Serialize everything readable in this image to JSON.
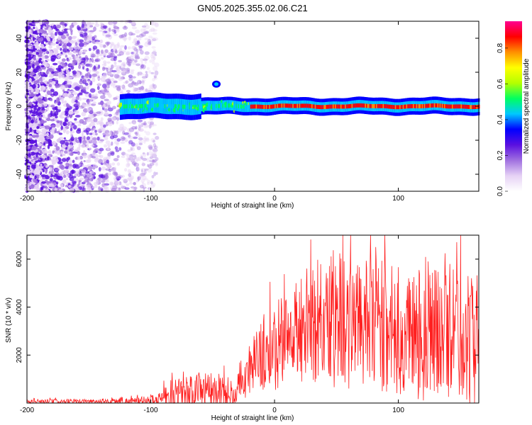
{
  "figure_title": "GN05.2025.355.02.06.C21",
  "chart_data": [
    {
      "type": "heatmap",
      "name": "spectrogram",
      "xlabel": "Height of straight line (km)",
      "ylabel": "Frequency (Hz)",
      "xlim": [
        -200,
        165
      ],
      "ylim": [
        -50,
        50
      ],
      "xticks": [
        -200,
        -100,
        0,
        100
      ],
      "xtick_labels": [
        "-200",
        "-100",
        "0",
        "100"
      ],
      "yticks": [
        -40,
        -20,
        0,
        20,
        40
      ],
      "ytick_labels": [
        "-40",
        "-20",
        "0",
        "20",
        "40"
      ],
      "grid": false,
      "features": {
        "noise_region_x": [
          -200,
          -95
        ],
        "signal_band_center_hz": 0,
        "signal_band_halfwidth_hz": 5,
        "signal_start_x": -125,
        "strong_signal_start_x": -20,
        "isolated_blob": {
          "x": -47,
          "freq": 13
        }
      },
      "colorbar": {
        "label": "Normalized spectral amplitude",
        "range": [
          0.0,
          0.95
        ],
        "ticks": [
          0.0,
          0.2,
          0.4,
          0.6,
          0.8
        ],
        "tick_labels": [
          "0.0",
          "0.2",
          "0.4",
          "0.6",
          "0.8"
        ],
        "colors": [
          "#ffffff",
          "#e6d2f5",
          "#a070e0",
          "#5a10e0",
          "#0000ff",
          "#00c8ff",
          "#00ff60",
          "#b4ff00",
          "#ffff00",
          "#ff9000",
          "#ff0000",
          "#ff0090"
        ]
      }
    },
    {
      "type": "line",
      "name": "snr",
      "xlabel": "Height of straight line (km)",
      "ylabel": "SNR (10 * v/v)",
      "xlim": [
        -200,
        165
      ],
      "ylim": [
        0,
        7000
      ],
      "xticks": [
        -200,
        -100,
        0,
        100
      ],
      "xtick_labels": [
        "-200",
        "-100",
        "0",
        "100"
      ],
      "yticks": [
        2000,
        4000,
        6000
      ],
      "ytick_labels": [
        "2000",
        "4000",
        "6000"
      ],
      "line_color": "#ff2020",
      "envelope": {
        "x": [
          -200,
          -150,
          -110,
          -95,
          -85,
          -75,
          -60,
          -45,
          -32,
          -28,
          -20,
          -10,
          0,
          10,
          20,
          30,
          40,
          50,
          60,
          70,
          80,
          90,
          100,
          110,
          120,
          130,
          140,
          150,
          160,
          165
        ],
        "base": [
          50,
          60,
          80,
          150,
          300,
          450,
          500,
          450,
          300,
          900,
          1500,
          1900,
          2300,
          2800,
          3000,
          3300,
          3500,
          3600,
          3400,
          3300,
          3200,
          3100,
          3000,
          2900,
          3000,
          3000,
          2900,
          2800,
          2700,
          2600
        ],
        "amp": [
          100,
          110,
          150,
          250,
          500,
          700,
          800,
          700,
          600,
          900,
          1100,
          1500,
          1800,
          2000,
          2300,
          2600,
          2900,
          3000,
          2800,
          2600,
          2800,
          2800,
          2700,
          2800,
          3000,
          2700,
          2800,
          2700,
          2800,
          2800
        ]
      }
    }
  ]
}
